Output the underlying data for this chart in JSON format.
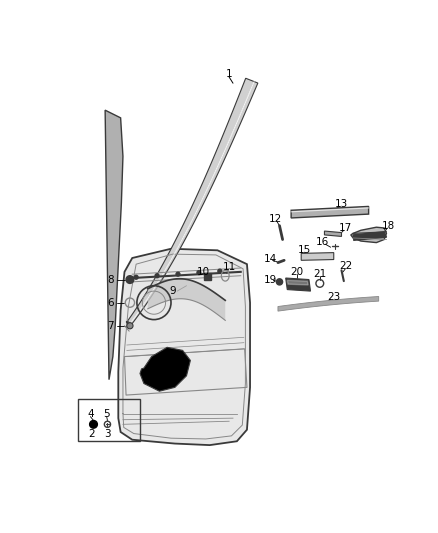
{
  "bg_color": "#ffffff",
  "lc": "#555555",
  "darkgray": "#3a3a3a",
  "gray": "#888888",
  "lightgray": "#cccccc",
  "midgray": "#aaaaaa",
  "figsize": [
    4.38,
    5.33
  ],
  "dpi": 100
}
